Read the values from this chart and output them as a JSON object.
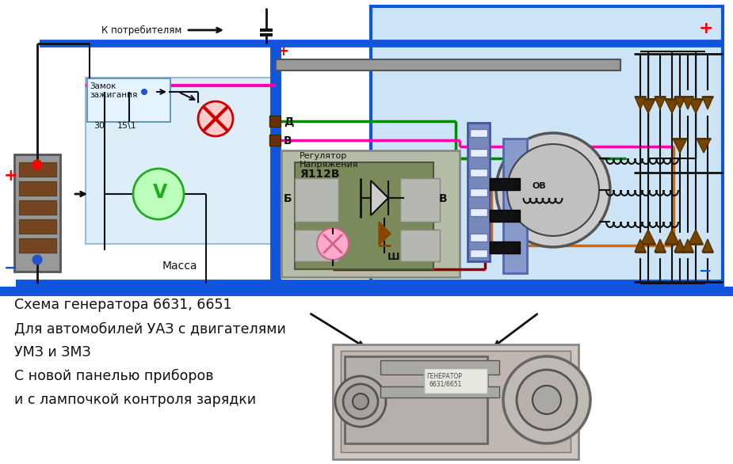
{
  "bg_color": "#ffffff",
  "light_blue_bg": "#cce4f5",
  "light_blue_left": "#ddeeff",
  "diagram_title_lines": [
    "Схема генератора 6631, 6651",
    "Для автомобилей УАЗ с двигателями",
    "УМЗ и ЗМЗ",
    "С новой панелью приборов",
    "и с лампочкой контроля зарядки"
  ],
  "plus_red": "#ff0000",
  "minus_blue": "#0055dd",
  "wire_blue": "#1155dd",
  "wire_pink": "#ff00aa",
  "wire_green": "#008800",
  "wire_gray": "#888888",
  "wire_orange": "#dd6600",
  "wire_dark_red": "#880000",
  "wire_black": "#111111",
  "regulator_bg": "#7a8a5a",
  "regulator_border": "#888888",
  "connector_purple": "#7788bb"
}
